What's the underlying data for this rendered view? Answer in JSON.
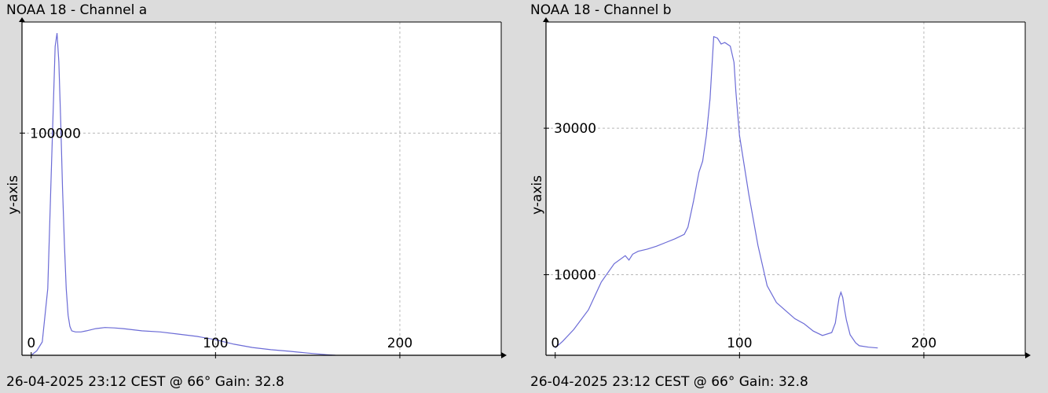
{
  "chart_data": [
    {
      "type": "line",
      "title": "NOAA 18 - Channel a",
      "footer": "26-04-2025 23:12 CEST @ 66° Gain: 32.8",
      "xlabel": "",
      "ylabel": "y-axis",
      "xlim": [
        -5,
        255
      ],
      "ylim": [
        0,
        150000
      ],
      "x_ticks": [
        0,
        100,
        200
      ],
      "y_ticks": [
        100000
      ],
      "x_tick_labels": [
        "0",
        "100",
        "200"
      ],
      "y_tick_labels": [
        "100000"
      ],
      "grid": true,
      "line_color": "#6b6bd6",
      "series": [
        {
          "x": [
            0,
            3,
            6,
            9,
            11,
            13,
            14,
            15,
            16,
            17,
            18,
            19,
            20,
            21,
            22,
            24,
            27,
            30,
            35,
            40,
            45,
            50,
            55,
            60,
            70,
            80,
            90,
            100,
            110,
            120,
            130,
            140,
            150,
            160,
            165
          ],
          "y": [
            0,
            2000,
            6000,
            30000,
            85000,
            139000,
            145000,
            132000,
            105000,
            75000,
            50000,
            30000,
            18000,
            13000,
            11000,
            10500,
            10500,
            11000,
            12000,
            12500,
            12300,
            12000,
            11500,
            11000,
            10500,
            9500,
            8500,
            7000,
            5000,
            3500,
            2500,
            1800,
            1000,
            300,
            0
          ]
        }
      ]
    },
    {
      "type": "line",
      "title": "NOAA 18 - Channel b",
      "footer": "26-04-2025 23:12 CEST @ 66° Gain: 32.8",
      "xlabel": "",
      "ylabel": "y-axis",
      "xlim": [
        -5,
        255
      ],
      "ylim": [
        -1000,
        44500
      ],
      "x_ticks": [
        0,
        100,
        200
      ],
      "y_ticks": [
        10000,
        30000
      ],
      "x_tick_labels": [
        "0",
        "100",
        "200"
      ],
      "y_tick_labels": [
        "10000",
        "30000"
      ],
      "grid": true,
      "line_color": "#6b6bd6",
      "series": [
        {
          "x": [
            0,
            4,
            10,
            18,
            25,
            32,
            38,
            40,
            42,
            45,
            50,
            55,
            60,
            65,
            70,
            72,
            75,
            78,
            80,
            82,
            84,
            86,
            88,
            90,
            92,
            95,
            97,
            98,
            100,
            105,
            110,
            115,
            120,
            125,
            130,
            135,
            140,
            145,
            150,
            152,
            153,
            154,
            155,
            156,
            157,
            158,
            160,
            163,
            165,
            170,
            175
          ],
          "y": [
            0,
            900,
            2500,
            5200,
            9000,
            11500,
            12600,
            12000,
            12800,
            13200,
            13500,
            13900,
            14400,
            14900,
            15500,
            16500,
            20000,
            24000,
            25500,
            29000,
            34000,
            42500,
            42300,
            41500,
            41700,
            41200,
            39000,
            35000,
            29000,
            21000,
            14000,
            8500,
            6200,
            5100,
            4000,
            3300,
            2300,
            1700,
            2100,
            3400,
            5200,
            6800,
            7600,
            6900,
            5200,
            3800,
            1800,
            700,
            300,
            100,
            0
          ]
        }
      ]
    }
  ]
}
